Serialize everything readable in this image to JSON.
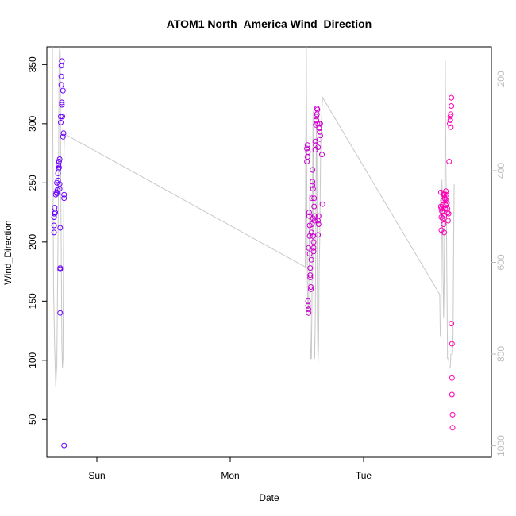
{
  "chart_data": {
    "type": "scatter",
    "title": "ATOM1 North_America Wind_Direction",
    "xlabel": "Date",
    "ylabel": "Wind_Direction",
    "x_ticks": [
      {
        "label": "Sun",
        "value": 0
      },
      {
        "label": "Mon",
        "value": 24
      },
      {
        "label": "Tue",
        "value": 48
      }
    ],
    "xlim": [
      -9,
      71
    ],
    "ylim": [
      18,
      365
    ],
    "y_ticks": [
      50,
      100,
      150,
      200,
      250,
      300,
      350
    ],
    "y2lim": [
      1025,
      130
    ],
    "y2_ticks": [
      200,
      400,
      600,
      800,
      1000
    ],
    "grid": false,
    "colors": {
      "start": "#6a00ff",
      "end": "#ff00b4",
      "line": "#c8c8c8",
      "secondary_axis": "#bdbdbd"
    },
    "points": [
      [
        -7.7,
        208
      ],
      [
        -7.7,
        214
      ],
      [
        -7.7,
        221
      ],
      [
        -7.6,
        224
      ],
      [
        -7.6,
        229
      ],
      [
        -7.5,
        225
      ],
      [
        -7.4,
        240
      ],
      [
        -7.3,
        242
      ],
      [
        -7.2,
        241
      ],
      [
        -7.2,
        250
      ],
      [
        -7.1,
        244
      ],
      [
        -7.0,
        252
      ],
      [
        -7.0,
        258
      ],
      [
        -6.9,
        262
      ],
      [
        -6.9,
        265
      ],
      [
        -6.8,
        263
      ],
      [
        -6.8,
        268
      ],
      [
        -6.7,
        270
      ],
      [
        -6.7,
        249
      ],
      [
        -6.7,
        245
      ],
      [
        -6.6,
        212
      ],
      [
        -6.6,
        178
      ],
      [
        -6.6,
        177
      ],
      [
        -6.6,
        140
      ],
      [
        -6.5,
        301
      ],
      [
        -6.5,
        306
      ],
      [
        -6.4,
        333
      ],
      [
        -6.4,
        340
      ],
      [
        -6.4,
        349
      ],
      [
        -6.3,
        353
      ],
      [
        -6.3,
        318
      ],
      [
        -6.3,
        316
      ],
      [
        -6.2,
        306
      ],
      [
        -6.1,
        289
      ],
      [
        -6.1,
        328
      ],
      [
        -6.0,
        292
      ],
      [
        -5.9,
        240
      ],
      [
        -5.9,
        237
      ],
      [
        -5.9,
        28
      ],
      [
        37.8,
        279
      ],
      [
        37.8,
        268
      ],
      [
        37.9,
        272
      ],
      [
        37.9,
        282
      ],
      [
        38.0,
        276
      ],
      [
        38.0,
        150
      ],
      [
        38.0,
        146
      ],
      [
        38.1,
        143
      ],
      [
        38.1,
        140
      ],
      [
        38.1,
        195
      ],
      [
        38.2,
        225
      ],
      [
        38.2,
        222
      ],
      [
        38.3,
        214
      ],
      [
        38.3,
        205
      ],
      [
        38.3,
        190
      ],
      [
        38.4,
        178
      ],
      [
        38.4,
        172
      ],
      [
        38.4,
        170
      ],
      [
        38.5,
        162
      ],
      [
        38.5,
        160
      ],
      [
        38.6,
        185
      ],
      [
        38.6,
        208
      ],
      [
        38.7,
        215
      ],
      [
        38.7,
        237
      ],
      [
        38.8,
        248
      ],
      [
        38.8,
        251
      ],
      [
        38.8,
        261
      ],
      [
        38.9,
        245
      ],
      [
        38.9,
        220
      ],
      [
        38.9,
        205
      ],
      [
        39.0,
        200
      ],
      [
        39.0,
        195
      ],
      [
        39.0,
        192
      ],
      [
        39.1,
        237
      ],
      [
        39.1,
        230
      ],
      [
        39.2,
        222
      ],
      [
        39.2,
        218
      ],
      [
        39.3,
        278
      ],
      [
        39.3,
        285
      ],
      [
        39.4,
        282
      ],
      [
        39.4,
        299
      ],
      [
        39.5,
        306
      ],
      [
        39.5,
        303
      ],
      [
        39.6,
        308
      ],
      [
        39.6,
        313
      ],
      [
        39.7,
        312
      ],
      [
        39.7,
        300
      ],
      [
        39.8,
        280
      ],
      [
        39.8,
        206
      ],
      [
        39.8,
        218
      ],
      [
        39.9,
        215
      ],
      [
        39.9,
        222
      ],
      [
        40.0,
        300
      ],
      [
        40.0,
        296
      ],
      [
        40.1,
        293
      ],
      [
        40.1,
        287
      ],
      [
        40.2,
        290
      ],
      [
        40.2,
        300
      ],
      [
        40.5,
        274
      ],
      [
        40.6,
        232
      ],
      [
        61.9,
        242
      ],
      [
        61.9,
        230
      ],
      [
        62.0,
        228
      ],
      [
        62.0,
        221
      ],
      [
        62.0,
        210
      ],
      [
        62.1,
        226
      ],
      [
        62.2,
        220
      ],
      [
        62.2,
        231
      ],
      [
        62.3,
        226
      ],
      [
        62.3,
        235
      ],
      [
        62.4,
        241
      ],
      [
        62.4,
        240
      ],
      [
        62.4,
        215
      ],
      [
        62.5,
        208
      ],
      [
        62.5,
        222
      ],
      [
        62.6,
        240
      ],
      [
        62.6,
        237
      ],
      [
        62.7,
        236
      ],
      [
        62.7,
        228
      ],
      [
        62.8,
        231
      ],
      [
        62.8,
        243
      ],
      [
        62.9,
        240
      ],
      [
        62.9,
        235
      ],
      [
        63.0,
        233
      ],
      [
        63.1,
        228
      ],
      [
        63.1,
        225
      ],
      [
        63.2,
        218
      ],
      [
        63.3,
        224
      ],
      [
        63.4,
        268
      ],
      [
        63.5,
        300
      ],
      [
        63.6,
        306
      ],
      [
        63.6,
        303
      ],
      [
        63.7,
        308
      ],
      [
        63.7,
        297
      ],
      [
        63.8,
        315
      ],
      [
        63.8,
        322
      ],
      [
        63.8,
        131
      ],
      [
        63.9,
        114
      ],
      [
        63.9,
        85
      ],
      [
        63.9,
        71
      ],
      [
        64.0,
        54
      ],
      [
        64.0,
        43
      ]
    ],
    "secondary_line": [
      [
        -8.0,
        130
      ],
      [
        -7.9,
        380
      ],
      [
        -7.8,
        650
      ],
      [
        -7.6,
        780
      ],
      [
        -7.4,
        870
      ],
      [
        -7.2,
        820
      ],
      [
        -7.0,
        560
      ],
      [
        -6.9,
        420
      ],
      [
        -6.8,
        160
      ],
      [
        -6.7,
        130
      ],
      [
        -6.6,
        140
      ],
      [
        -6.5,
        420
      ],
      [
        -6.3,
        780
      ],
      [
        -6.2,
        830
      ],
      [
        -6.1,
        810
      ],
      [
        -6.0,
        560
      ],
      [
        -5.9,
        350
      ],
      [
        -5.8,
        320
      ],
      [
        37.5,
        610
      ],
      [
        37.6,
        330
      ],
      [
        37.7,
        130
      ],
      [
        37.8,
        480
      ],
      [
        37.9,
        660
      ],
      [
        38.0,
        700
      ],
      [
        38.1,
        700
      ],
      [
        38.2,
        590
      ],
      [
        38.3,
        450
      ],
      [
        38.4,
        740
      ],
      [
        38.5,
        810
      ],
      [
        38.6,
        810
      ],
      [
        38.7,
        700
      ],
      [
        38.8,
        480
      ],
      [
        38.9,
        270
      ],
      [
        39.0,
        560
      ],
      [
        39.1,
        800
      ],
      [
        39.2,
        810
      ],
      [
        39.3,
        730
      ],
      [
        39.4,
        560
      ],
      [
        39.5,
        300
      ],
      [
        39.6,
        380
      ],
      [
        39.7,
        730
      ],
      [
        39.8,
        820
      ],
      [
        39.9,
        780
      ],
      [
        40.0,
        620
      ],
      [
        40.1,
        560
      ],
      [
        40.3,
        330
      ],
      [
        40.6,
        240
      ],
      [
        61.7,
        670
      ],
      [
        61.8,
        760
      ],
      [
        61.9,
        760
      ],
      [
        62.0,
        610
      ],
      [
        62.1,
        420
      ],
      [
        62.2,
        480
      ],
      [
        62.3,
        630
      ],
      [
        62.4,
        720
      ],
      [
        62.5,
        640
      ],
      [
        62.6,
        460
      ],
      [
        62.7,
        160
      ],
      [
        62.8,
        360
      ],
      [
        62.9,
        500
      ],
      [
        63.0,
        650
      ],
      [
        63.1,
        810
      ],
      [
        63.2,
        810
      ],
      [
        63.3,
        810
      ],
      [
        63.4,
        830
      ],
      [
        63.5,
        830
      ],
      [
        63.6,
        830
      ],
      [
        63.7,
        800
      ],
      [
        63.8,
        800
      ],
      [
        63.9,
        800
      ],
      [
        64.0,
        800
      ],
      [
        64.1,
        760
      ],
      [
        64.2,
        560
      ],
      [
        64.3,
        430
      ]
    ]
  }
}
